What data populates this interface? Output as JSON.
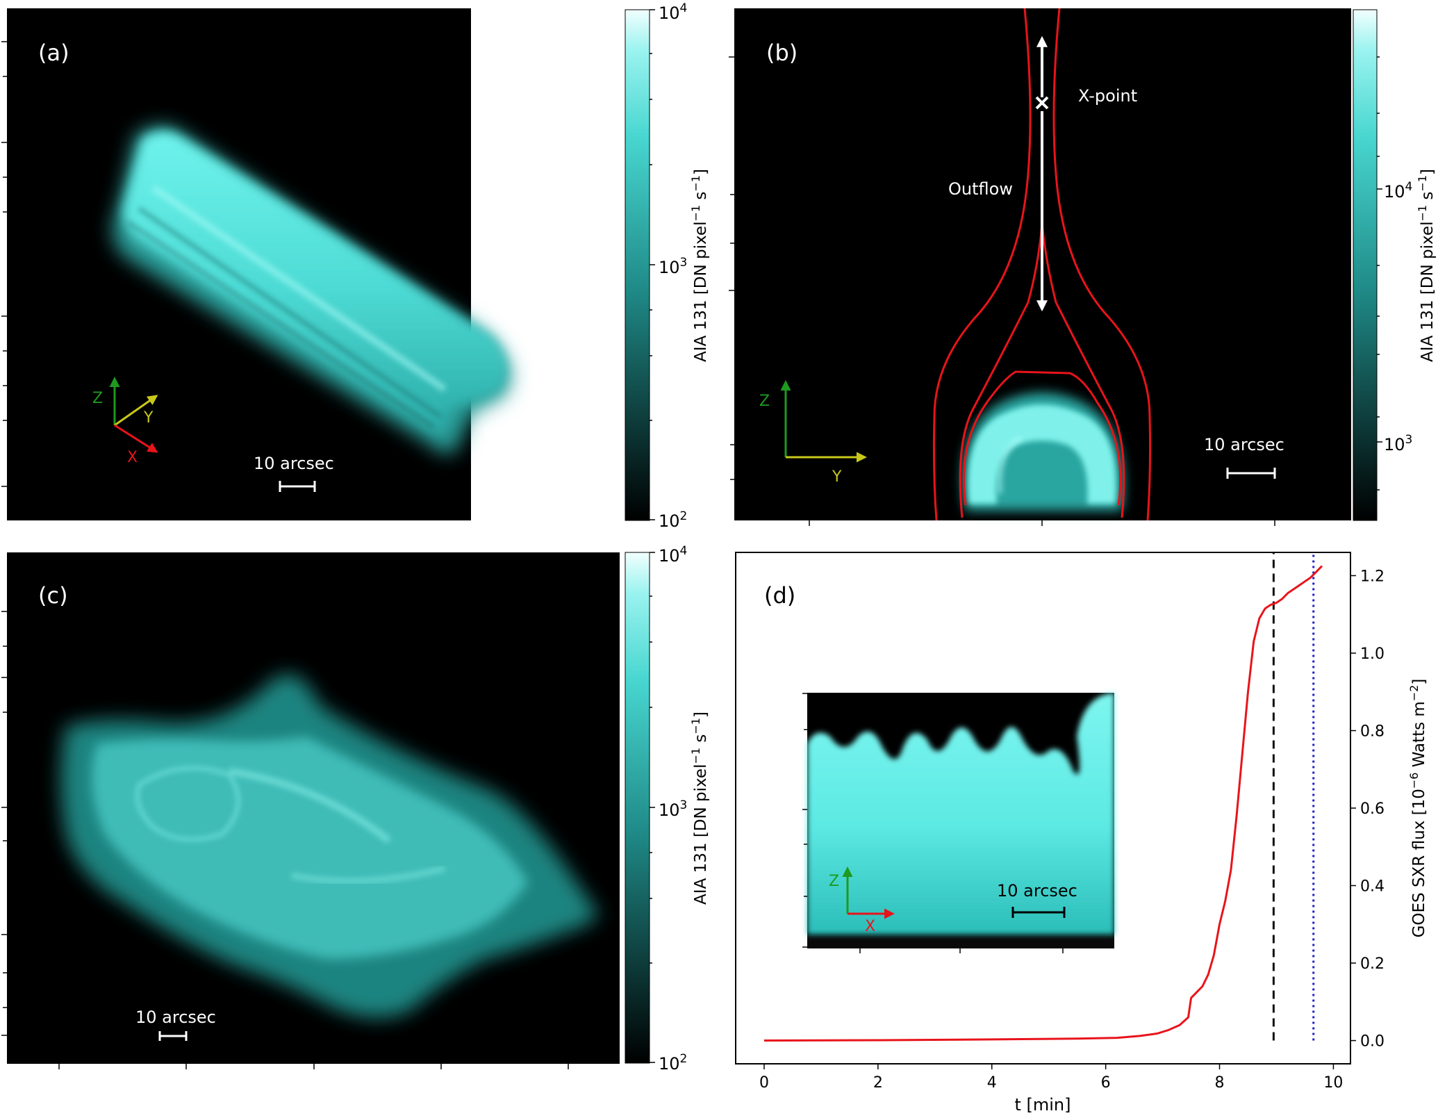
{
  "panels": {
    "a": {
      "label": "(a)",
      "scale_text": "10 arcsec",
      "colorbar": {
        "label_main": "AIA 131 [DN pixel",
        "label_exp1": "−1",
        "label_mid": " s",
        "label_exp2": "−1",
        "label_end": "]",
        "tick_top_base": "10",
        "tick_top_exp": "4",
        "tick_mid_base": "10",
        "tick_mid_exp": "3",
        "tick_bot_base": "10",
        "tick_bot_exp": "2"
      },
      "axes": {
        "z": "Z",
        "y": "Y",
        "x": "X"
      }
    },
    "b": {
      "label": "(b)",
      "scale_text": "10 arcsec",
      "annotations": {
        "xpoint": "X-point",
        "outflow": "Outflow"
      },
      "colorbar": {
        "label_main": "AIA 131 [DN pixel",
        "label_exp1": "−1",
        "label_mid": " s",
        "label_exp2": "−1",
        "label_end": "]",
        "tick_top_base": "10",
        "tick_top_exp": "4",
        "tick_bot_base": "10",
        "tick_bot_exp": "3"
      },
      "axes": {
        "z": "Z",
        "y": "Y"
      }
    },
    "c": {
      "label": "(c)",
      "scale_text": "10 arcsec",
      "colorbar": {
        "label_main": "AIA 131 [DN pixel",
        "label_exp1": "−1",
        "label_mid": " s",
        "label_exp2": "−1",
        "label_end": "]",
        "tick_top_base": "10",
        "tick_top_exp": "4",
        "tick_mid_base": "10",
        "tick_mid_exp": "3",
        "tick_bot_base": "10",
        "tick_bot_exp": "2"
      }
    },
    "d": {
      "label": "(d)",
      "inset": {
        "scale_text": "10 arcsec",
        "axes": {
          "z": "Z",
          "x": "X"
        }
      }
    }
  },
  "chart_data": {
    "type": "line",
    "xlabel": "t [min]",
    "ylabel_main": "GOES SXR flux [10",
    "ylabel_exp": "−6",
    "ylabel_end": " Watts m",
    "ylabel_exp2": "−2",
    "ylabel_close": "]",
    "xlim": [
      -0.5,
      10.3
    ],
    "ylim": [
      -0.06,
      1.26
    ],
    "xticks": [
      "0",
      "2",
      "4",
      "6",
      "8",
      "10"
    ],
    "yticks": [
      "0.0",
      "0.2",
      "0.4",
      "0.6",
      "0.8",
      "1.0",
      "1.2"
    ],
    "series": [
      {
        "color": "#e8141b",
        "x": [
          0,
          2,
          4,
          5.5,
          6.2,
          6.6,
          6.9,
          7.1,
          7.3,
          7.45,
          7.5,
          7.6,
          7.7,
          7.8,
          7.9,
          8.0,
          8.1,
          8.2,
          8.3,
          8.4,
          8.5,
          8.6,
          8.7,
          8.8,
          8.9,
          9.0,
          9.1,
          9.2,
          9.3,
          9.4,
          9.5,
          9.6,
          9.7,
          9.8
        ],
        "y": [
          0.0,
          0.001,
          0.003,
          0.005,
          0.007,
          0.012,
          0.018,
          0.027,
          0.04,
          0.06,
          0.11,
          0.125,
          0.14,
          0.17,
          0.22,
          0.3,
          0.36,
          0.44,
          0.58,
          0.74,
          0.9,
          1.03,
          1.09,
          1.115,
          1.125,
          1.13,
          1.14,
          1.155,
          1.165,
          1.175,
          1.185,
          1.195,
          1.21,
          1.225
        ]
      }
    ],
    "vlines": [
      {
        "x": 8.95,
        "style": "dashed",
        "color": "#111111"
      },
      {
        "x": 9.65,
        "style": "dotted",
        "color": "#1c1ccc"
      }
    ]
  }
}
